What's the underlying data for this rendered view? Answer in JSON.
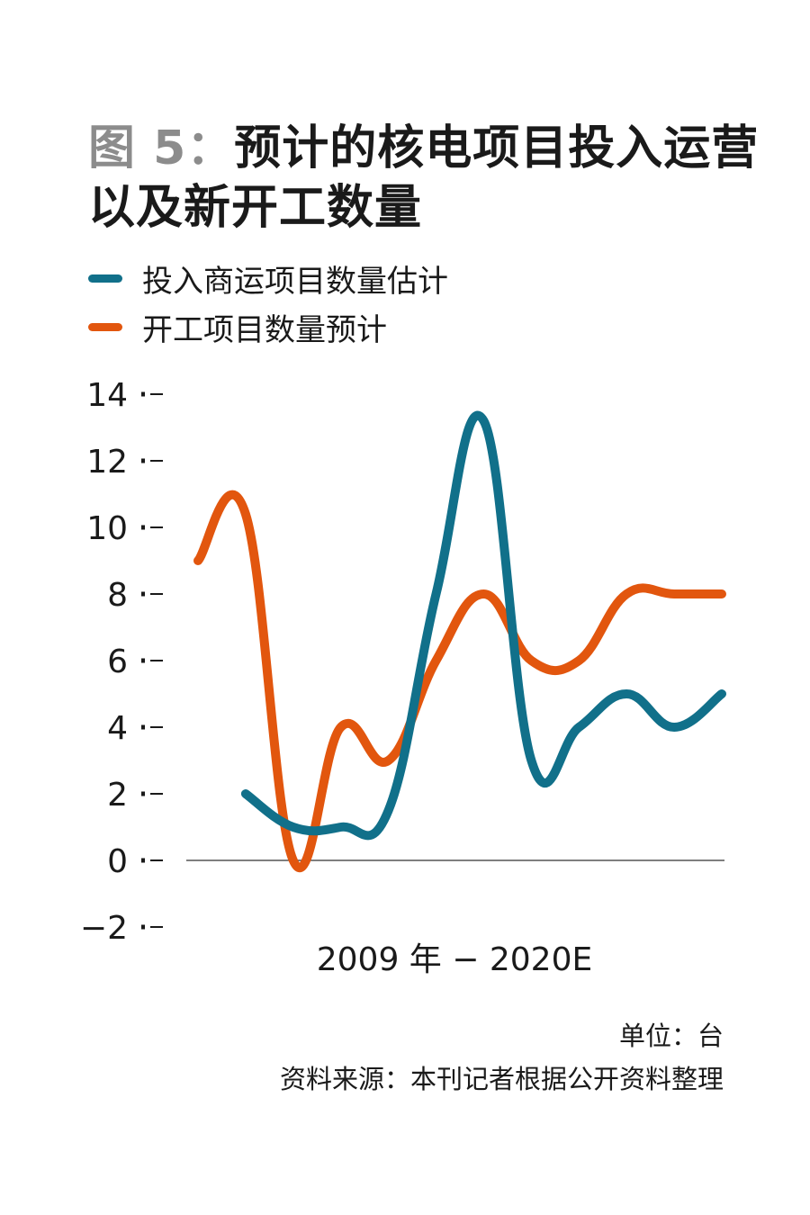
{
  "title": {
    "figure_label": "图 5：",
    "text": "预计的核电项目投入运营以及新开工数量"
  },
  "legend": [
    {
      "label": "投入商运项目数量估计",
      "color": "#11708a"
    },
    {
      "label": "开工项目数量预计",
      "color": "#e2560e"
    }
  ],
  "footer": {
    "unit": "单位：台",
    "source": "资料来源：本刊记者根据公开资料整理"
  },
  "chart_data": {
    "type": "line",
    "xlabel": "2009 年 − 2020E",
    "ylabel": "",
    "ylim": [
      -2,
      14
    ],
    "yticks": [
      "14",
      "12",
      "10",
      "8",
      "6",
      "4",
      "2",
      "0",
      "−2"
    ],
    "grid": false,
    "legend_position": "top-left",
    "series": [
      {
        "name": "投入商运项目数量估计",
        "color": "#11708a",
        "x": [
          2010,
          2011,
          2012,
          2013,
          2014,
          2015,
          2016,
          2017,
          2018,
          2019,
          2020
        ],
        "values": [
          2,
          1,
          1,
          1.5,
          8,
          13.2,
          3,
          4,
          5,
          4,
          5
        ]
      },
      {
        "name": "开工项目数量预计",
        "color": "#e2560e",
        "x": [
          2009,
          2010,
          2011,
          2012,
          2013,
          2014,
          2015,
          2016,
          2017,
          2018,
          2019,
          2020
        ],
        "values": [
          9,
          10.4,
          0,
          4,
          3,
          6,
          8,
          6,
          6,
          8,
          8,
          8
        ]
      }
    ]
  }
}
